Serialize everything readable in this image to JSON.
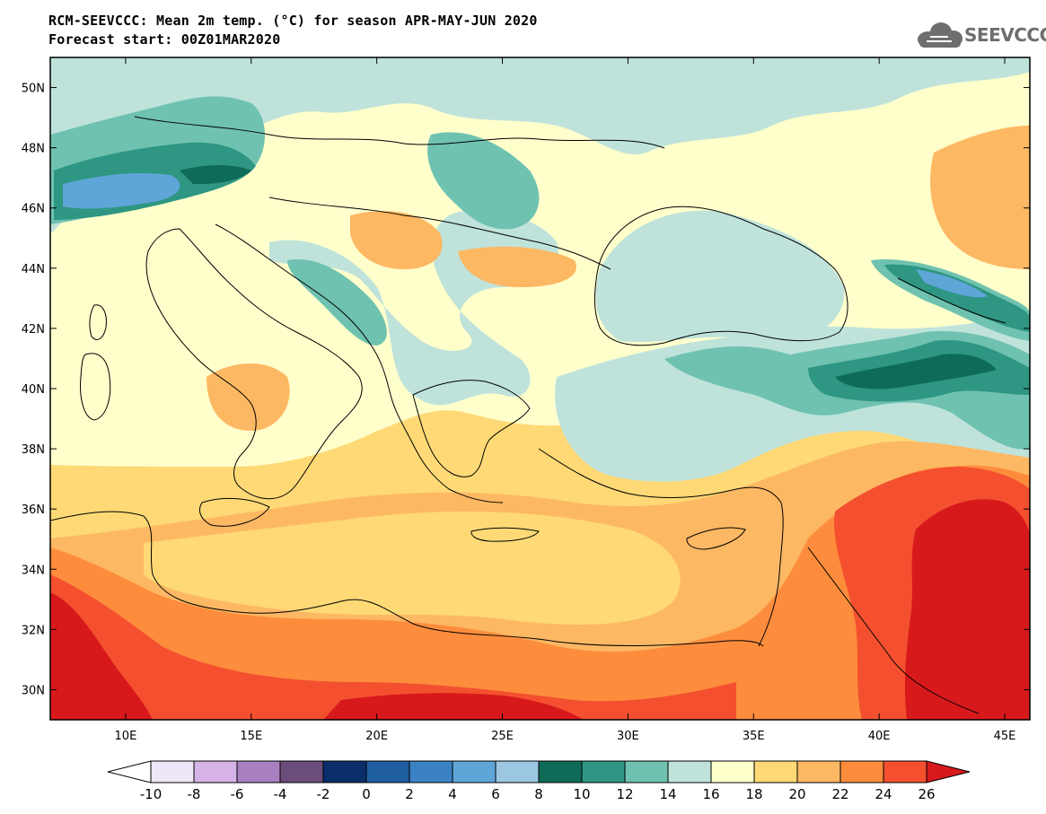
{
  "title": {
    "line1": "RCM-SEEVCCC: Mean 2m temp. (°C) for season APR-MAY-JUN 2020",
    "line2": "Forecast start: 00Z01MAR2020"
  },
  "logo": {
    "text": "SEEVCCC",
    "icon": "cloud-logo-icon"
  },
  "map": {
    "projection": "lat-lon",
    "lon_range": [
      7,
      46
    ],
    "lat_range": [
      29,
      51
    ],
    "lat_ticks": [
      {
        "value": 50,
        "label": "50N"
      },
      {
        "value": 48,
        "label": "48N"
      },
      {
        "value": 46,
        "label": "46N"
      },
      {
        "value": 44,
        "label": "44N"
      },
      {
        "value": 42,
        "label": "42N"
      },
      {
        "value": 40,
        "label": "40N"
      },
      {
        "value": 38,
        "label": "38N"
      },
      {
        "value": 36,
        "label": "36N"
      },
      {
        "value": 34,
        "label": "34N"
      },
      {
        "value": 32,
        "label": "32N"
      },
      {
        "value": 30,
        "label": "30N"
      }
    ],
    "lon_ticks": [
      {
        "value": 10,
        "label": "10E"
      },
      {
        "value": 15,
        "label": "15E"
      },
      {
        "value": 20,
        "label": "20E"
      },
      {
        "value": 25,
        "label": "25E"
      },
      {
        "value": 30,
        "label": "30E"
      },
      {
        "value": 35,
        "label": "35E"
      },
      {
        "value": 40,
        "label": "40E"
      },
      {
        "value": 45,
        "label": "45E"
      }
    ]
  },
  "colorbar": {
    "left_arrow_color": "#ffffff",
    "right_arrow_color": "#d7191c",
    "colors": [
      "#efe6f7",
      "#d6b3e6",
      "#a880c0",
      "#6b4c7a",
      "#0b2e6b",
      "#1f5fa0",
      "#3b82c4",
      "#5fa6d8",
      "#9bc7e3",
      "#0e6b58",
      "#2e9682",
      "#6fc2b0",
      "#bfe3db",
      "#ffffcc",
      "#fed976",
      "#fdb863",
      "#fd8d3c",
      "#f4502f"
    ],
    "labels": [
      "-10",
      "-8",
      "-6",
      "-4",
      "-2",
      "0",
      "2",
      "4",
      "6",
      "8",
      "10",
      "12",
      "14",
      "16",
      "18",
      "20",
      "22",
      "24",
      "26"
    ]
  }
}
